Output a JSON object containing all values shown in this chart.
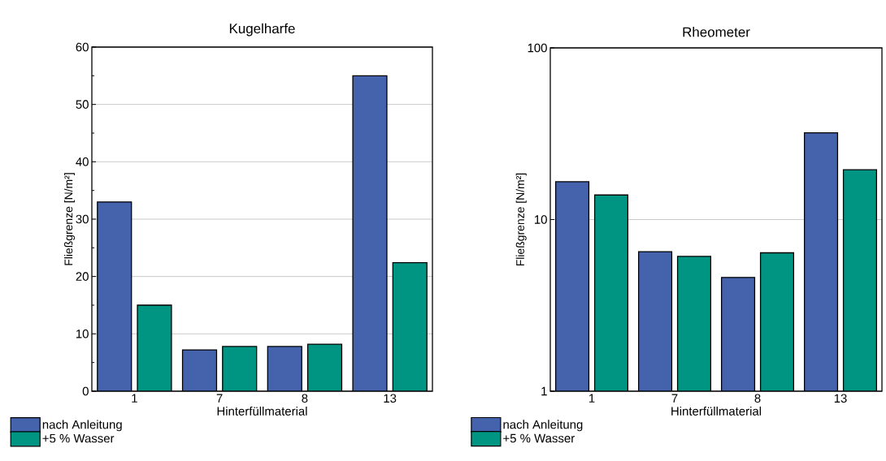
{
  "chart_data": [
    {
      "type": "bar",
      "title": "Kugelharfe",
      "xlabel": "Hinterfüllmaterial",
      "ylabel": "Fließgrenze [N/m²]",
      "categories": [
        "1",
        "7",
        "8",
        "13"
      ],
      "series": [
        {
          "name": "nach Anleitung",
          "color": "#4563ad",
          "values": [
            33,
            7.2,
            7.8,
            55
          ]
        },
        {
          "name": "+5 % Wasser",
          "color": "#009482",
          "values": [
            15,
            7.8,
            8.2,
            22.4
          ]
        }
      ],
      "ylim": [
        0,
        60
      ],
      "yticks": [
        0,
        10,
        20,
        30,
        40,
        50,
        60
      ],
      "grid": "y",
      "legend": "bottom left"
    },
    {
      "type": "bar",
      "title": "Rheometer",
      "xlabel": "Hinterfüllmaterial",
      "ylabel": "Fließgrenze [N/m²]",
      "categories": [
        "1",
        "7",
        "8",
        "13"
      ],
      "series": [
        {
          "name": "nach Anleitung",
          "color": "#4563ad",
          "values": [
            16.6,
            6.5,
            4.6,
            32
          ]
        },
        {
          "name": "+5 % Wasser",
          "color": "#009482",
          "values": [
            13.9,
            6.1,
            6.4,
            19.5
          ]
        }
      ],
      "ylim": [
        1,
        100
      ],
      "yticks": [
        1,
        10,
        100
      ],
      "log": true,
      "grid": "y",
      "legend": "bottom left"
    }
  ]
}
